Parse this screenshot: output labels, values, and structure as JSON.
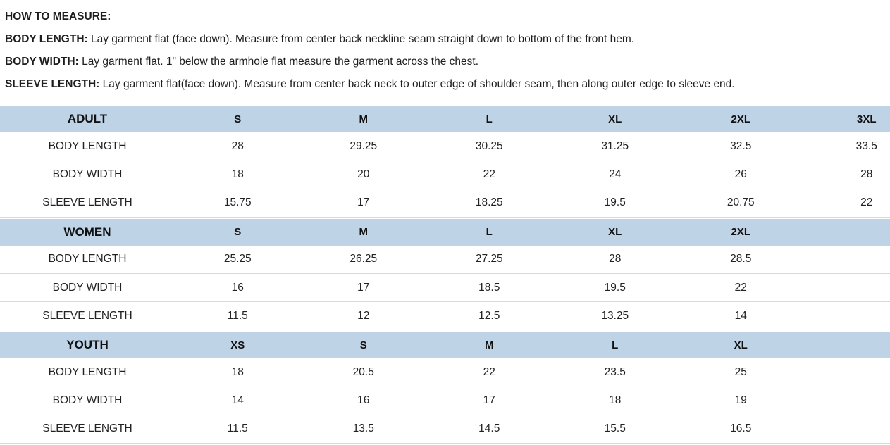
{
  "colors": {
    "header_bg": "#bed3e6",
    "row_border": "#d9d9d9",
    "text": "#1d1d1d"
  },
  "instructions": {
    "heading": "HOW TO MEASURE:",
    "items": [
      {
        "label": "BODY LENGTH:",
        "text": " Lay garment flat (face down). Measure from center back neckline seam straight down to bottom of the front hem."
      },
      {
        "label": "BODY WIDTH:",
        "text": " Lay garment flat. 1\" below the armhole flat measure the garment across the chest."
      },
      {
        "label": "SLEEVE LENGTH:",
        "text": " Lay garment flat(face down). Measure from center back neck to outer edge of shoulder seam, then along outer edge to sleeve end."
      }
    ]
  },
  "layout": {
    "label_col_width": 248,
    "size_col_width": 178.5,
    "max_size_cols": 6
  },
  "tables": [
    {
      "group": "ADULT",
      "sizes": [
        "S",
        "M",
        "L",
        "XL",
        "2XL",
        "3XL"
      ],
      "rows": [
        {
          "label": "BODY LENGTH",
          "values": [
            "28",
            "29.25",
            "30.25",
            "31.25",
            "32.5",
            "33.5"
          ]
        },
        {
          "label": "BODY WIDTH",
          "values": [
            "18",
            "20",
            "22",
            "24",
            "26",
            "28"
          ]
        },
        {
          "label": "SLEEVE LENGTH",
          "values": [
            "15.75",
            "17",
            "18.25",
            "19.5",
            "20.75",
            "22"
          ]
        }
      ]
    },
    {
      "group": "WOMEN",
      "sizes": [
        "S",
        "M",
        "L",
        "XL",
        "2XL"
      ],
      "rows": [
        {
          "label": "BODY LENGTH",
          "values": [
            "25.25",
            "26.25",
            "27.25",
            "28",
            "28.5"
          ]
        },
        {
          "label": "BODY WIDTH",
          "values": [
            "16",
            "17",
            "18.5",
            "19.5",
            "22"
          ]
        },
        {
          "label": "SLEEVE LENGTH",
          "values": [
            "11.5",
            "12",
            "12.5",
            "13.25",
            "14"
          ]
        }
      ]
    },
    {
      "group": "YOUTH",
      "sizes": [
        "XS",
        "S",
        "M",
        "L",
        "XL"
      ],
      "rows": [
        {
          "label": "BODY LENGTH",
          "values": [
            "18",
            "20.5",
            "22",
            "23.5",
            "25"
          ]
        },
        {
          "label": "BODY WIDTH",
          "values": [
            "14",
            "16",
            "17",
            "18",
            "19"
          ]
        },
        {
          "label": "SLEEVE LENGTH",
          "values": [
            "11.5",
            "13.5",
            "14.5",
            "15.5",
            "16.5"
          ]
        }
      ]
    }
  ]
}
